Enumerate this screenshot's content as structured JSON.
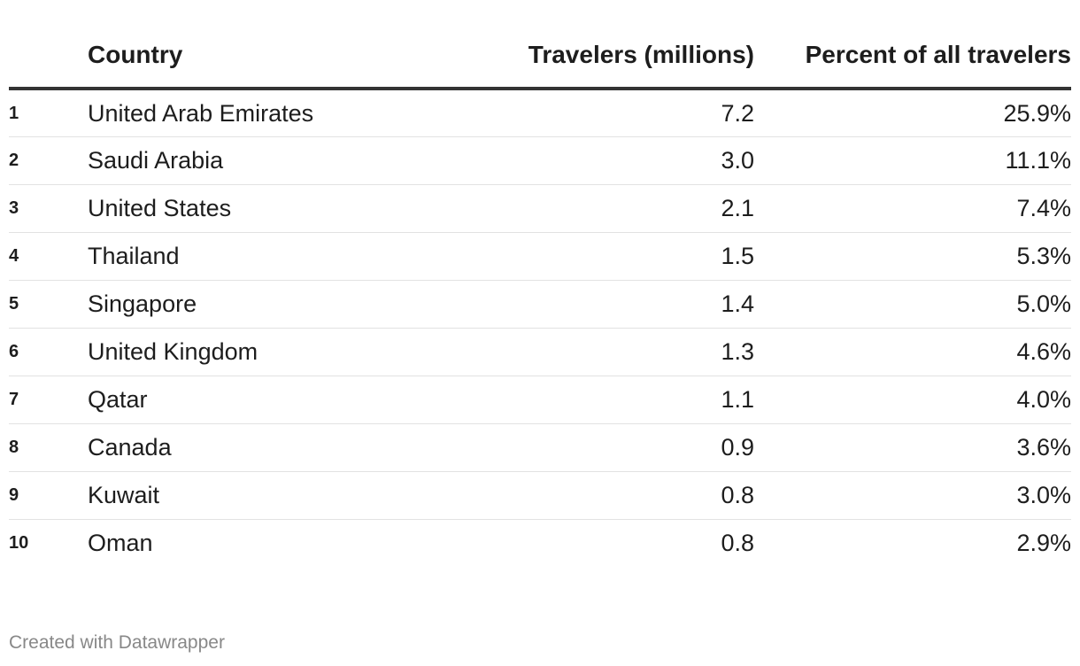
{
  "chart_data": {
    "type": "table",
    "columns": [
      "",
      "Country",
      "Travelers (millions)",
      "Percent of all travelers"
    ],
    "rows": [
      {
        "rank": "1",
        "country": "United Arab Emirates",
        "travelers": "7.2",
        "percent": "25.9%"
      },
      {
        "rank": "2",
        "country": "Saudi Arabia",
        "travelers": "3.0",
        "percent": "11.1%"
      },
      {
        "rank": "3",
        "country": "United States",
        "travelers": "2.1",
        "percent": "7.4%"
      },
      {
        "rank": "4",
        "country": "Thailand",
        "travelers": "1.5",
        "percent": "5.3%"
      },
      {
        "rank": "5",
        "country": "Singapore",
        "travelers": "1.4",
        "percent": "5.0%"
      },
      {
        "rank": "6",
        "country": "United Kingdom",
        "travelers": "1.3",
        "percent": "4.6%"
      },
      {
        "rank": "7",
        "country": "Qatar",
        "travelers": "1.1",
        "percent": "4.0%"
      },
      {
        "rank": "8",
        "country": "Canada",
        "travelers": "0.9",
        "percent": "3.6%"
      },
      {
        "rank": "9",
        "country": "Kuwait",
        "travelers": "0.8",
        "percent": "3.0%"
      },
      {
        "rank": "10",
        "country": "Oman",
        "travelers": "0.8",
        "percent": "2.9%"
      }
    ]
  },
  "footer": {
    "credit": "Created with Datawrapper"
  },
  "colors": {
    "text": "#1d1d1d",
    "header_rule": "#333333",
    "row_rule": "#e2e2e2",
    "credit": "#888888"
  }
}
